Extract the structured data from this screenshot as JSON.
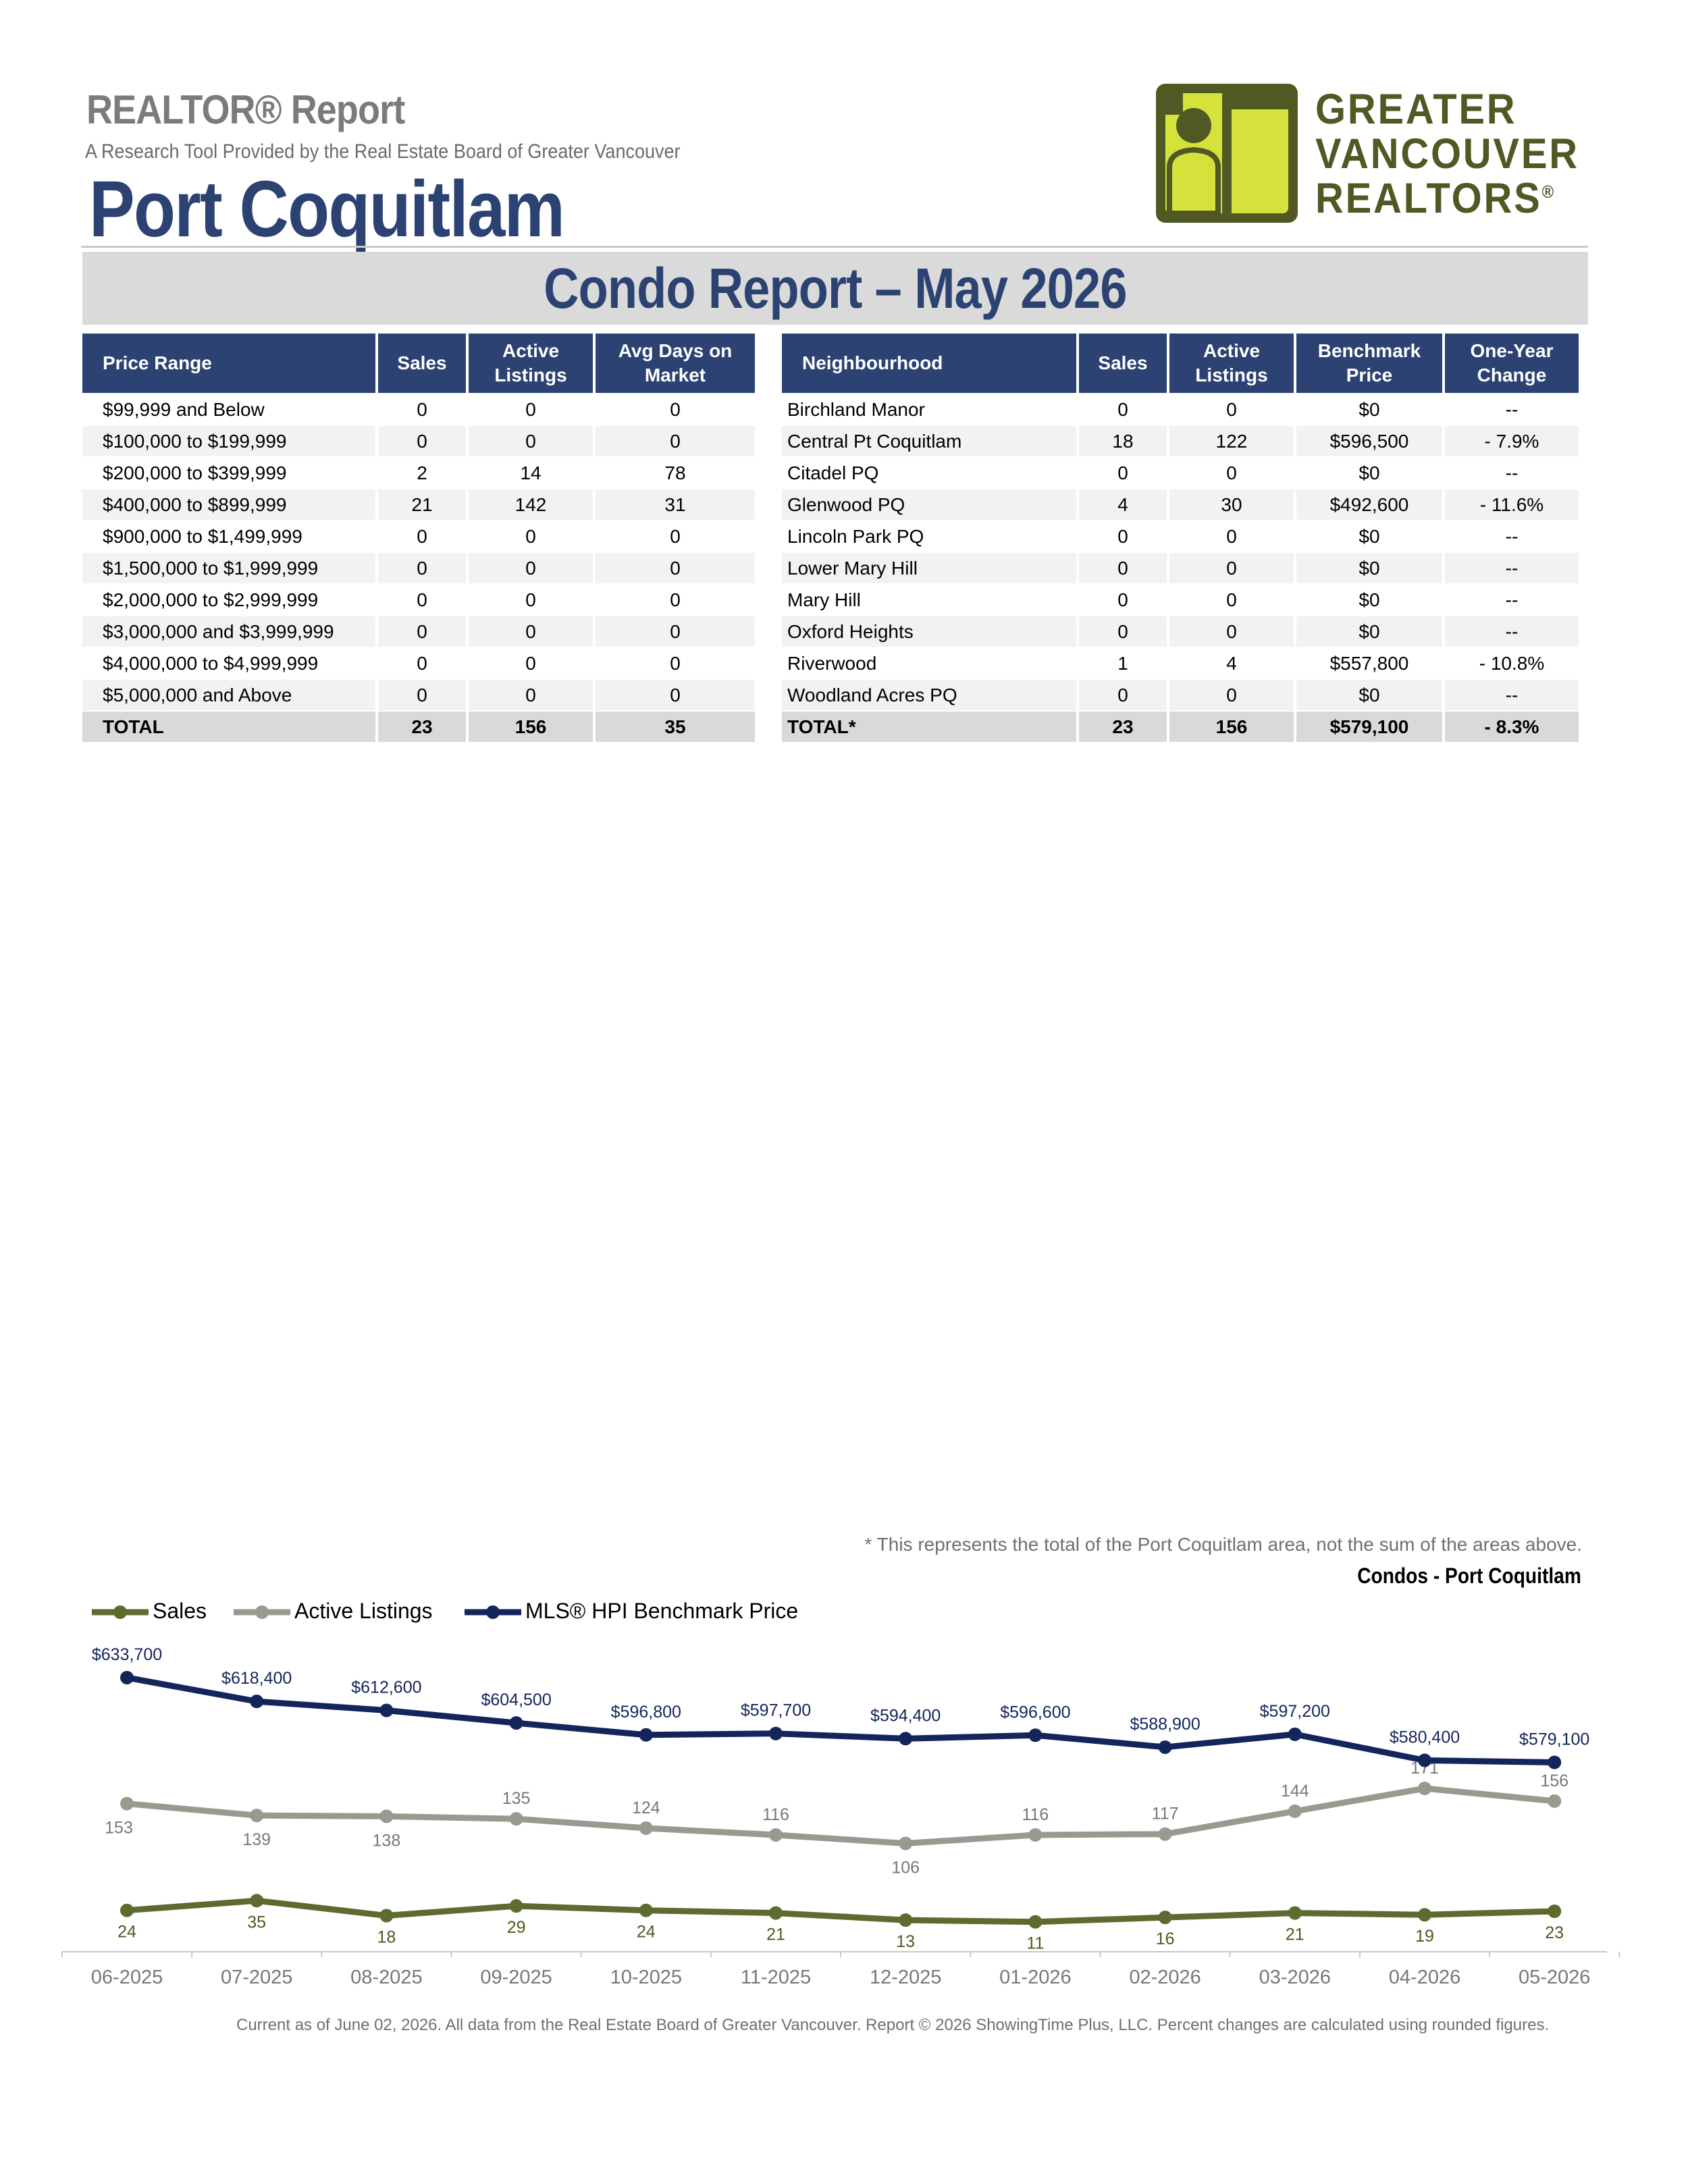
{
  "header": {
    "report_name": "REALTOR® Report",
    "subtitle": "A Research Tool Provided by the Real Estate Board of Greater Vancouver",
    "city": "Port Coquitlam",
    "report_title": "Condo Report – May 2026"
  },
  "logo": {
    "lines": [
      "GREATER",
      "VANCOUVER",
      "REALTORS"
    ],
    "mark": "®",
    "colors": {
      "dark": "#505823",
      "light": "#d6e23c"
    }
  },
  "price_table": {
    "headers": [
      "Price Range",
      "Sales",
      "Active Listings",
      "Avg Days on Market"
    ],
    "rows": [
      [
        "$99,999 and Below",
        "0",
        "0",
        "0"
      ],
      [
        "$100,000 to $199,999",
        "0",
        "0",
        "0"
      ],
      [
        "$200,000 to $399,999",
        "2",
        "14",
        "78"
      ],
      [
        "$400,000 to $899,999",
        "21",
        "142",
        "31"
      ],
      [
        "$900,000 to $1,499,999",
        "0",
        "0",
        "0"
      ],
      [
        "$1,500,000 to $1,999,999",
        "0",
        "0",
        "0"
      ],
      [
        "$2,000,000 to $2,999,999",
        "0",
        "0",
        "0"
      ],
      [
        "$3,000,000 and $3,999,999",
        "0",
        "0",
        "0"
      ],
      [
        "$4,000,000 to $4,999,999",
        "0",
        "0",
        "0"
      ],
      [
        "$5,000,000 and Above",
        "0",
        "0",
        "0"
      ]
    ],
    "total": [
      "TOTAL",
      "23",
      "156",
      "35"
    ]
  },
  "neighbourhood_table": {
    "headers": [
      "Neighbourhood",
      "Sales",
      "Active Listings",
      "Benchmark Price",
      "One-Year Change"
    ],
    "rows": [
      [
        "Birchland Manor",
        "0",
        "0",
        "$0",
        "--"
      ],
      [
        "Central Pt Coquitlam",
        "18",
        "122",
        "$596,500",
        "- 7.9%"
      ],
      [
        "Citadel PQ",
        "0",
        "0",
        "$0",
        "--"
      ],
      [
        "Glenwood PQ",
        "4",
        "30",
        "$492,600",
        "- 11.6%"
      ],
      [
        "Lincoln Park PQ",
        "0",
        "0",
        "$0",
        "--"
      ],
      [
        "Lower Mary Hill",
        "0",
        "0",
        "$0",
        "--"
      ],
      [
        "Mary Hill",
        "0",
        "0",
        "$0",
        "--"
      ],
      [
        "Oxford Heights",
        "0",
        "0",
        "$0",
        "--"
      ],
      [
        "Riverwood",
        "1",
        "4",
        "$557,800",
        "- 10.8%"
      ],
      [
        "Woodland Acres PQ",
        "0",
        "0",
        "$0",
        "--"
      ]
    ],
    "total": [
      "TOTAL*",
      "23",
      "156",
      "$579,100",
      "- 8.3%"
    ]
  },
  "footnote": "* This represents the total of the Port Coquitlam area, not the sum of the areas above.",
  "chart_data": {
    "type": "line",
    "title": "Condos - Port Coquitlam",
    "x": [
      "06-2025",
      "07-2025",
      "08-2025",
      "09-2025",
      "10-2025",
      "11-2025",
      "12-2025",
      "01-2026",
      "02-2026",
      "03-2026",
      "04-2026",
      "05-2026"
    ],
    "legend_position": "top-left",
    "grid": false,
    "series": [
      {
        "name": "Sales",
        "color": "#5c6b2e",
        "label_color": "#4a5a1f",
        "values": [
          24,
          35,
          18,
          29,
          24,
          21,
          13,
          11,
          16,
          21,
          19,
          23
        ]
      },
      {
        "name": "Active Listings",
        "color": "#9b9890",
        "label_color": "#777777",
        "values": [
          153,
          139,
          138,
          135,
          124,
          116,
          106,
          116,
          117,
          144,
          171,
          156
        ]
      },
      {
        "name": "MLS® HPI Benchmark Price",
        "color": "#13255a",
        "label_color": "#13255a",
        "values": [
          633700,
          618400,
          612600,
          604500,
          596800,
          597700,
          594400,
          596600,
          588900,
          597200,
          580400,
          579100
        ],
        "labels": [
          "$633,700",
          "$618,400",
          "$612,600",
          "$604,500",
          "$596,800",
          "$597,700",
          "$594,400",
          "$596,600",
          "$588,900",
          "$597,200",
          "$580,400",
          "$579,100"
        ]
      }
    ]
  },
  "footer": "Current as of June 02, 2026. All data from the Real Estate Board of Greater Vancouver.  Report © 2026 ShowingTime Plus, LLC. Percent changes are calculated using rounded figures."
}
